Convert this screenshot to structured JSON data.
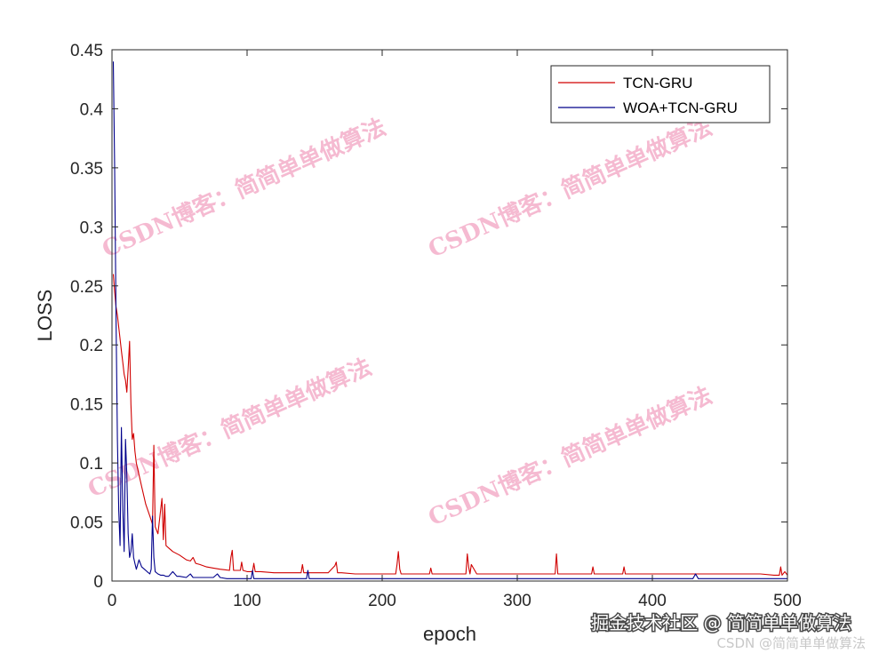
{
  "chart_data": {
    "type": "line",
    "title": "",
    "xlabel": "epoch",
    "ylabel": "LOSS",
    "xlim": [
      0,
      500
    ],
    "ylim": [
      0,
      0.45
    ],
    "x_ticks": [
      "0",
      "100",
      "200",
      "300",
      "400",
      "500"
    ],
    "y_ticks": [
      "0",
      "0.05",
      "0.1",
      "0.15",
      "0.2",
      "0.25",
      "0.3",
      "0.35",
      "0.4",
      "0.45"
    ],
    "grid": false,
    "legend_position": "top-right",
    "series": [
      {
        "name": "TCN-GRU",
        "color": "#d00000",
        "x": [
          1,
          2,
          3,
          4,
          5,
          6,
          7,
          8,
          9,
          10,
          11,
          12,
          13,
          14,
          15,
          16,
          17,
          18,
          20,
          22,
          25,
          28,
          30,
          31,
          32,
          34,
          36,
          37,
          38,
          39,
          40,
          42,
          45,
          50,
          55,
          58,
          60,
          62,
          65,
          70,
          75,
          80,
          87,
          88,
          89,
          90,
          95,
          96,
          97,
          100,
          104,
          105,
          106,
          110,
          120,
          130,
          140,
          141,
          142,
          150,
          160,
          165,
          166,
          167,
          170,
          180,
          200,
          210,
          211,
          212,
          213,
          214,
          215,
          220,
          230,
          235,
          236,
          237,
          240,
          250,
          260,
          262,
          263,
          264,
          265,
          266,
          270,
          280,
          300,
          320,
          328,
          329,
          330,
          340,
          355,
          356,
          357,
          360,
          378,
          379,
          380,
          400,
          420,
          440,
          460,
          480,
          490,
          494,
          495,
          496,
          498,
          500
        ],
        "y": [
          0.26,
          0.245,
          0.232,
          0.225,
          0.215,
          0.205,
          0.195,
          0.185,
          0.175,
          0.17,
          0.16,
          0.18,
          0.203,
          0.15,
          0.12,
          0.125,
          0.11,
          0.1,
          0.09,
          0.08,
          0.065,
          0.055,
          0.048,
          0.115,
          0.046,
          0.04,
          0.06,
          0.07,
          0.035,
          0.065,
          0.03,
          0.028,
          0.025,
          0.022,
          0.018,
          0.017,
          0.02,
          0.015,
          0.014,
          0.012,
          0.011,
          0.01,
          0.009,
          0.02,
          0.026,
          0.009,
          0.009,
          0.016,
          0.009,
          0.008,
          0.008,
          0.015,
          0.008,
          0.008,
          0.007,
          0.007,
          0.007,
          0.014,
          0.007,
          0.007,
          0.007,
          0.013,
          0.016,
          0.007,
          0.007,
          0.006,
          0.006,
          0.006,
          0.014,
          0.025,
          0.01,
          0.006,
          0.006,
          0.006,
          0.006,
          0.006,
          0.011,
          0.006,
          0.006,
          0.006,
          0.006,
          0.006,
          0.023,
          0.012,
          0.006,
          0.014,
          0.006,
          0.006,
          0.006,
          0.006,
          0.006,
          0.023,
          0.006,
          0.006,
          0.006,
          0.012,
          0.006,
          0.006,
          0.006,
          0.012,
          0.006,
          0.006,
          0.006,
          0.006,
          0.006,
          0.006,
          0.005,
          0.005,
          0.012,
          0.005,
          0.008,
          0.005
        ]
      },
      {
        "name": "WOA+TCN-GRU",
        "color": "#00008b",
        "x": [
          1,
          2,
          3,
          4,
          5,
          6,
          7,
          8,
          9,
          10,
          11,
          12,
          13,
          14,
          15,
          16,
          17,
          18,
          20,
          22,
          24,
          26,
          28,
          29,
          30,
          31,
          32,
          34,
          36,
          38,
          40,
          42,
          45,
          48,
          50,
          55,
          58,
          60,
          65,
          70,
          75,
          78,
          80,
          85,
          90,
          95,
          100,
          103,
          104,
          105,
          110,
          120,
          130,
          140,
          144,
          145,
          146,
          150,
          160,
          180,
          200,
          220,
          240,
          250,
          260,
          280,
          300,
          350,
          400,
          430,
          432,
          434,
          450,
          480,
          500
        ],
        "y": [
          0.44,
          0.35,
          0.22,
          0.12,
          0.06,
          0.03,
          0.13,
          0.06,
          0.025,
          0.12,
          0.09,
          0.04,
          0.02,
          0.025,
          0.04,
          0.02,
          0.015,
          0.01,
          0.018,
          0.012,
          0.01,
          0.008,
          0.006,
          0.01,
          0.055,
          0.02,
          0.008,
          0.006,
          0.005,
          0.005,
          0.004,
          0.004,
          0.008,
          0.004,
          0.004,
          0.003,
          0.006,
          0.003,
          0.003,
          0.003,
          0.003,
          0.006,
          0.003,
          0.002,
          0.002,
          0.002,
          0.002,
          0.002,
          0.009,
          0.002,
          0.002,
          0.002,
          0.002,
          0.002,
          0.002,
          0.009,
          0.002,
          0.002,
          0.002,
          0.002,
          0.002,
          0.002,
          0.002,
          0.002,
          0.002,
          0.002,
          0.002,
          0.002,
          0.002,
          0.002,
          0.006,
          0.002,
          0.002,
          0.002,
          0.002
        ]
      }
    ]
  },
  "watermarks": [
    "CSDN博客：简简单单做算法",
    "CSDN博客：简简单单做算法",
    "CSDN博客：简简单单做算法",
    "CSDN博客：简简单单做算法"
  ],
  "footer": {
    "site_watermark": "掘金技术社区 @ 简简单单做算法",
    "csdn_watermark": "CSDN @简简单单做算法"
  }
}
